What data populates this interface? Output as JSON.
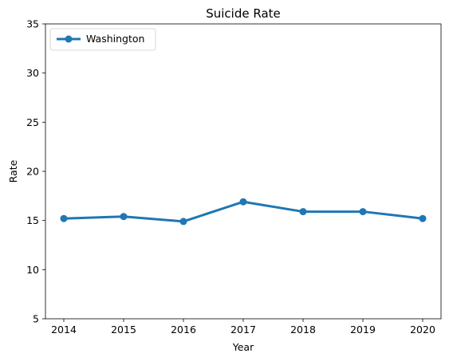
{
  "chart_data": {
    "type": "line",
    "title": "Suicide Rate",
    "xlabel": "Year",
    "ylabel": "Rate",
    "x": [
      "2014",
      "2015",
      "2016",
      "2017",
      "2018",
      "2019",
      "2020"
    ],
    "yticks": [
      "5",
      "10",
      "15",
      "20",
      "25",
      "30",
      "35"
    ],
    "ylim": [
      5,
      35
    ],
    "grid": false,
    "legend_position": "top-left",
    "series": [
      {
        "name": "Washington",
        "color": "#1f77b4",
        "marker": "circle",
        "values": [
          15.2,
          15.4,
          14.9,
          16.9,
          15.9,
          15.9,
          15.2
        ]
      }
    ]
  }
}
